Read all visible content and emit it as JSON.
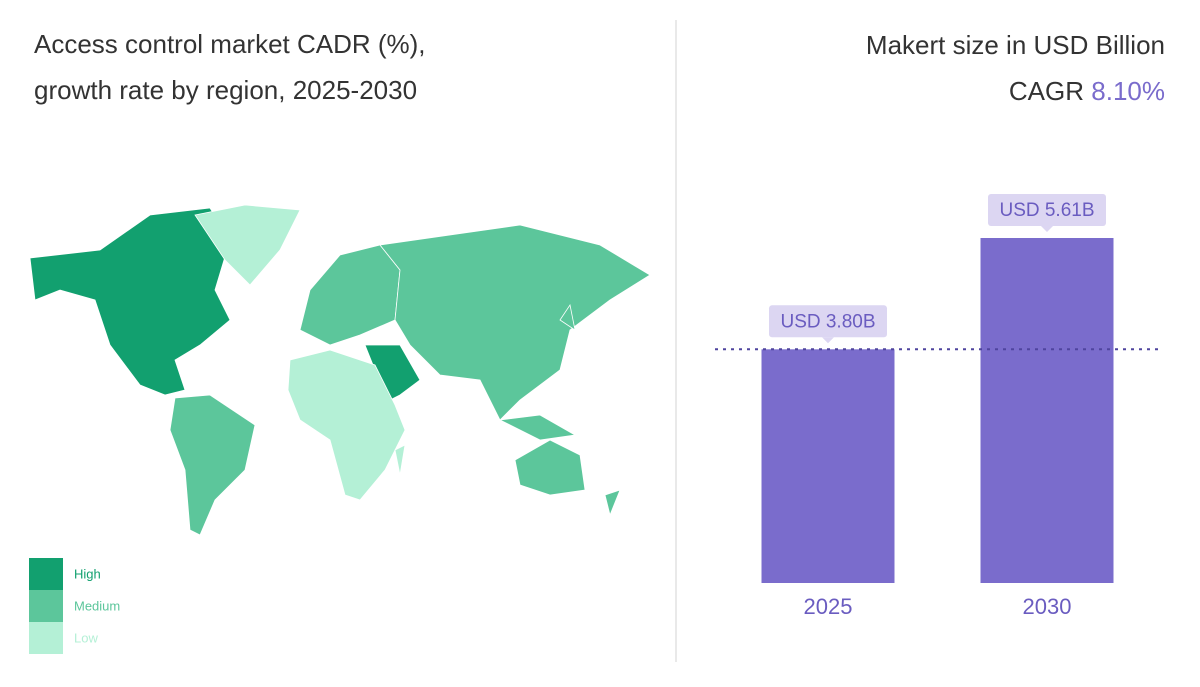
{
  "map": {
    "title": [
      "Access control market CADR (%),",
      "growth rate by region, 2025-2030"
    ],
    "legend": [
      {
        "label": "High",
        "color": "#12a06f"
      },
      {
        "label": "Medium",
        "color": "#5cc69b"
      },
      {
        "label": "Low",
        "color": "#b4f0d6"
      }
    ]
  },
  "chart_data": {
    "type": "bar",
    "title": "Makert size in USD Billion",
    "annotation": {
      "label": "CAGR",
      "value": "8.10%"
    },
    "categories": [
      "2025",
      "2030"
    ],
    "values": [
      3.8,
      5.61
    ],
    "value_labels": [
      "USD 3.80B",
      "USD 5.61B"
    ],
    "color": "#7a6ccc",
    "reference_line": true
  }
}
